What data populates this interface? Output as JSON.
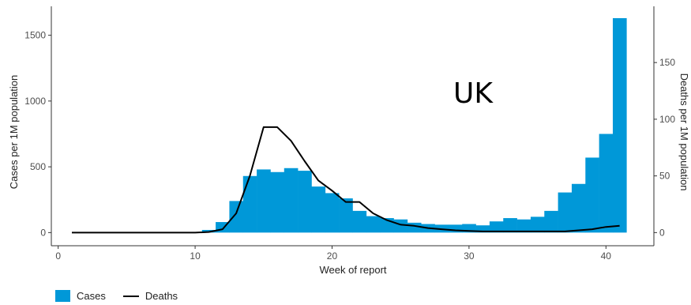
{
  "chart_data": {
    "type": "bar+line",
    "annotation": "UK",
    "xlabel": "Week of report",
    "ylabel_left": "Cases per 1M population",
    "ylabel_right": "Deaths per 1M population",
    "xlim": [
      -0.5,
      43.5
    ],
    "ylim_left": [
      -100,
      1720
    ],
    "ylim_right": [
      -11.6,
      199.6
    ],
    "x_ticks": [
      0,
      10,
      20,
      30,
      40
    ],
    "y_left_ticks": [
      0,
      500,
      1000,
      1500
    ],
    "y_right_ticks": [
      0,
      50,
      100,
      150
    ],
    "cases": {
      "name": "Cases",
      "color": "#0098d8",
      "weeks": [
        11,
        12,
        13,
        14,
        15,
        16,
        17,
        18,
        19,
        20,
        21,
        22,
        23,
        24,
        25,
        26,
        27,
        28,
        29,
        30,
        31,
        32,
        33,
        34,
        35,
        36,
        37,
        38,
        39,
        40,
        41
      ],
      "values": [
        20,
        80,
        240,
        430,
        480,
        460,
        490,
        470,
        350,
        300,
        260,
        165,
        125,
        110,
        100,
        75,
        65,
        60,
        60,
        65,
        55,
        85,
        110,
        100,
        120,
        165,
        305,
        370,
        570,
        750,
        1630
      ]
    },
    "deaths": {
      "name": "Deaths",
      "color": "#000000",
      "weeks": [
        1,
        2,
        3,
        4,
        5,
        6,
        7,
        8,
        9,
        10,
        11,
        12,
        13,
        14,
        15,
        16,
        17,
        18,
        19,
        20,
        21,
        22,
        23,
        24,
        25,
        26,
        27,
        28,
        29,
        30,
        31,
        32,
        33,
        34,
        35,
        36,
        37,
        38,
        39,
        40,
        41
      ],
      "values": [
        0,
        0,
        0,
        0,
        0,
        0,
        0,
        0,
        0,
        0,
        0.5,
        3,
        17,
        50,
        93,
        93,
        81,
        63,
        46,
        37,
        27,
        27,
        17,
        11,
        7,
        6,
        4,
        3,
        2,
        1.5,
        1,
        1,
        1,
        1,
        1,
        1,
        1,
        2,
        3,
        5,
        6
      ]
    },
    "legend": [
      "Cases",
      "Deaths"
    ],
    "legend_position": "bottom-left",
    "grid": false
  }
}
